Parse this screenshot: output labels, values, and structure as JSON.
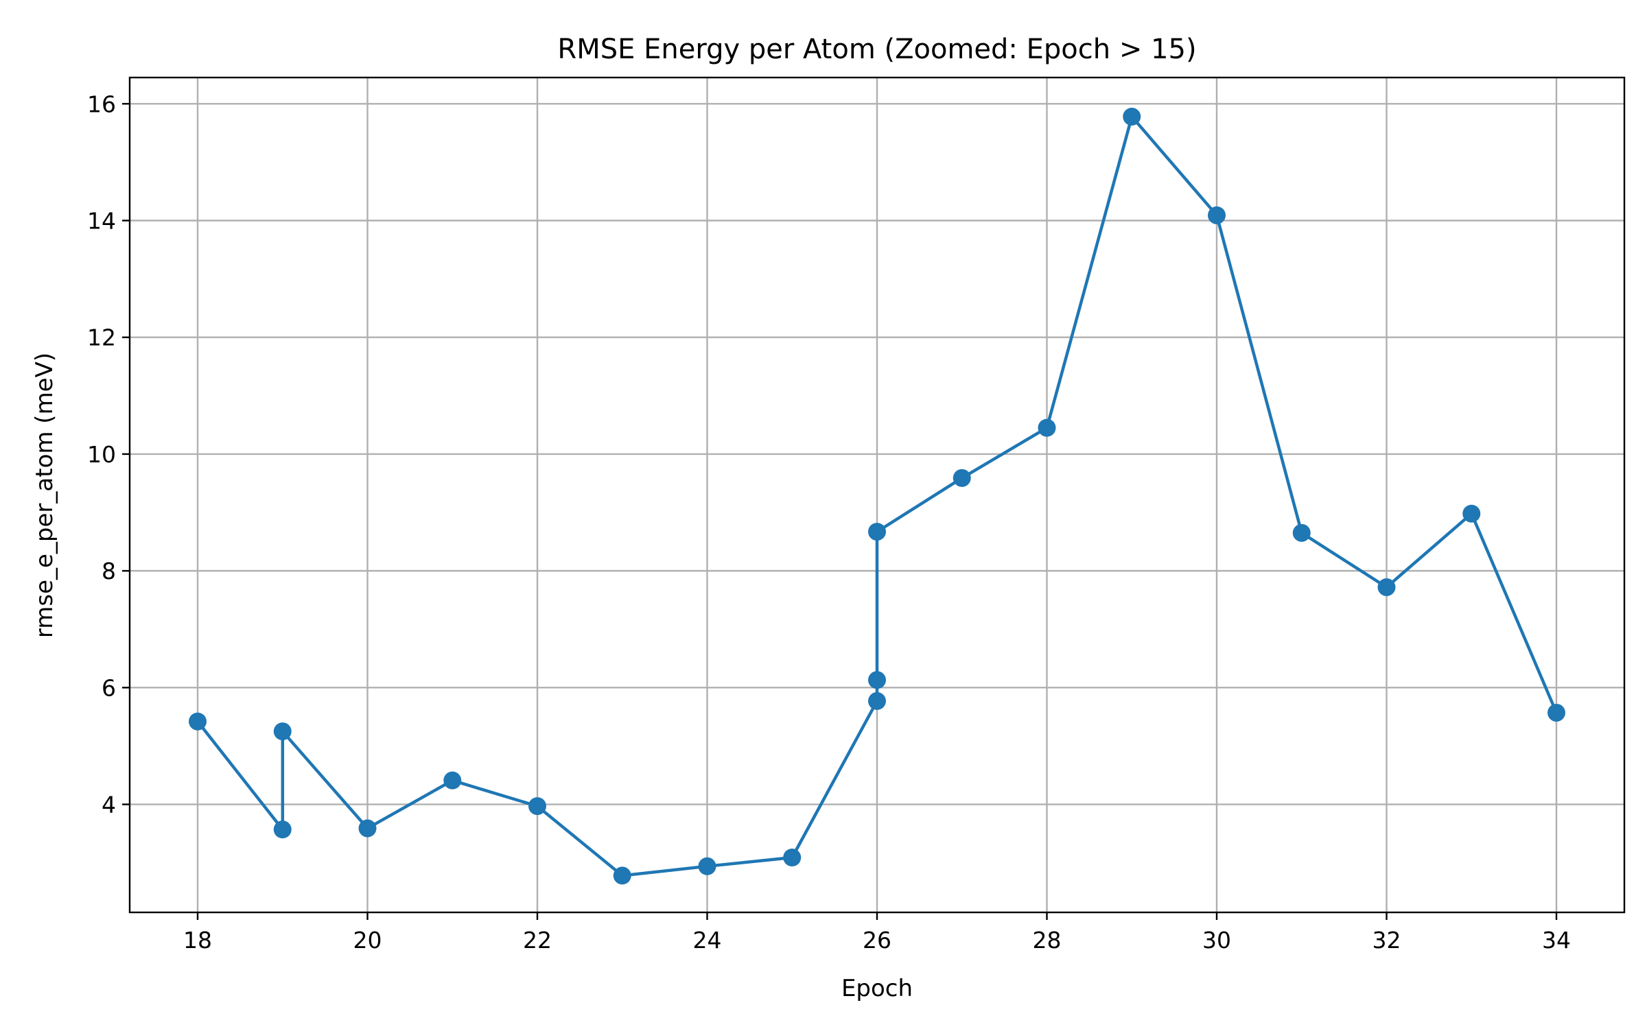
{
  "chart_data": {
    "type": "line",
    "title": "RMSE Energy per Atom (Zoomed: Epoch > 15)",
    "xlabel": "Epoch",
    "ylabel": "rmse_e_per_atom (meV)",
    "xlim": [
      17.2,
      34.8
    ],
    "ylim": [
      2.15,
      16.45
    ],
    "xticks": [
      18,
      20,
      22,
      24,
      26,
      28,
      30,
      32,
      34
    ],
    "yticks": [
      4,
      6,
      8,
      10,
      12,
      14,
      16
    ],
    "grid": true,
    "color": "#1f77b4",
    "marker": "circle",
    "series": [
      {
        "x": [
          18,
          19,
          19,
          20,
          21,
          22,
          23,
          24,
          25,
          26,
          26,
          26,
          27,
          28,
          29,
          30,
          31,
          32,
          33,
          34
        ],
        "y": [
          5.42,
          3.57,
          5.25,
          3.59,
          4.41,
          3.97,
          2.78,
          2.94,
          3.09,
          5.77,
          6.13,
          8.67,
          9.59,
          10.45,
          15.78,
          14.09,
          8.65,
          7.72,
          8.98,
          5.57
        ]
      }
    ]
  }
}
